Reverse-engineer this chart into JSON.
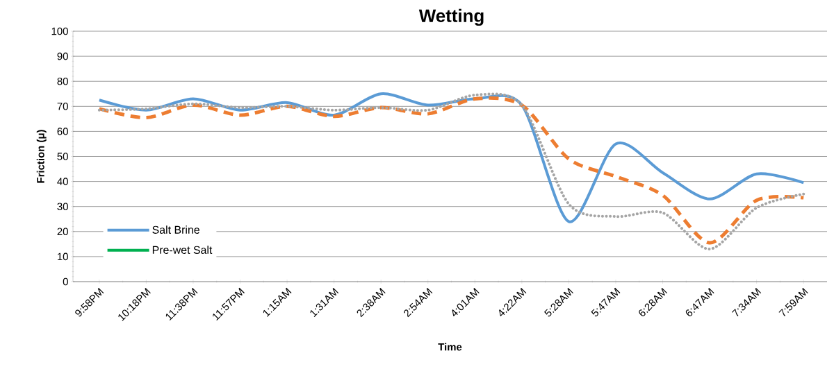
{
  "chart_data": {
    "type": "line",
    "title": "Wetting",
    "xlabel": "Time",
    "ylabel": "Friction (μ)",
    "categories": [
      "9:58PM",
      "10:18PM",
      "11:38PM",
      "11:57PM",
      "1:15AM",
      "1:31AM",
      "2:38AM",
      "2:54AM",
      "4:01AM",
      "4:22AM",
      "5:28AM",
      "5:47AM",
      "6:28AM",
      "6:47AM",
      "7:34AM",
      "7:59AM"
    ],
    "series": [
      {
        "name": "Salt Brine",
        "color": "#5b9bd5",
        "line_style": "solid",
        "values": [
          72.5,
          68.5,
          73,
          68.5,
          71.5,
          66.5,
          75,
          70.5,
          73,
          70.5,
          24,
          55,
          43.5,
          33,
          43,
          39.5
        ]
      },
      {
        "color": "#ed7d31",
        "line_style": "dashed",
        "values": [
          69,
          65.5,
          70.5,
          66.5,
          70,
          66,
          69.5,
          67,
          73,
          70.5,
          49,
          42,
          34.5,
          15.5,
          32.5,
          33.5
        ]
      },
      {
        "color": "#a5a5a5",
        "line_style": "dotted",
        "values": [
          68.5,
          69,
          71,
          69.5,
          70,
          68.5,
          69.5,
          68.5,
          74.5,
          70.5,
          31,
          26,
          27.5,
          13,
          29.5,
          35
        ]
      },
      {
        "name": "Pre-wet Salt",
        "color": "#00b050",
        "line_style": "solid",
        "values": [
          null,
          null,
          null,
          null,
          null,
          null,
          null,
          null,
          null,
          null,
          null,
          null,
          null,
          null,
          null,
          null
        ]
      }
    ],
    "ylim": [
      0,
      100
    ],
    "yticks": [
      0,
      10,
      20,
      30,
      40,
      50,
      60,
      70,
      80,
      90,
      100
    ],
    "grid": "y",
    "legend": "left",
    "marker": "none"
  }
}
